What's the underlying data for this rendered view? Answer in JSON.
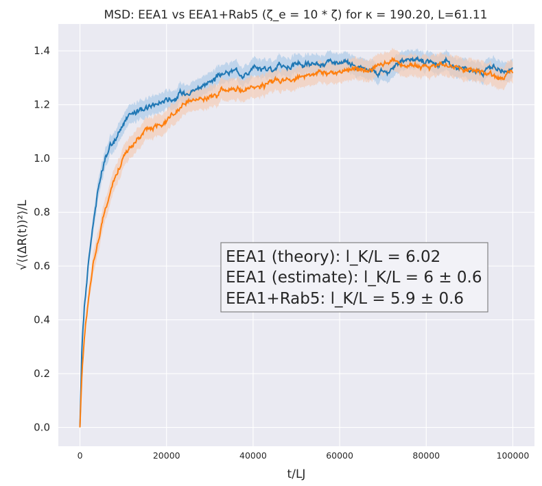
{
  "chart_data": {
    "type": "line",
    "title": "MSD: EEA1 vs EEA1+Rab5 (ζ_e = 10 * ζ) for κ = 190.20, L=61.11",
    "xlabel": "t/LJ",
    "ylabel": "√⟨(ΔR(t))²⟩/L",
    "xlim": [
      -5000,
      105000
    ],
    "ylim": [
      -0.07,
      1.5
    ],
    "grid": true,
    "x_ticks": [
      0,
      20000,
      40000,
      60000,
      80000,
      100000
    ],
    "x_tick_labels": [
      "0",
      "20000",
      "40000",
      "60000",
      "80000",
      "100000"
    ],
    "y_ticks": [
      0.0,
      0.2,
      0.4,
      0.6,
      0.8,
      1.0,
      1.2,
      1.4
    ],
    "y_tick_labels": [
      "0.0",
      "0.2",
      "0.4",
      "0.6",
      "0.8",
      "1.0",
      "1.2",
      "1.4"
    ],
    "x": [
      0,
      500,
      1000,
      2000,
      3000,
      4000,
      5000,
      6000,
      8000,
      10000,
      12000,
      15000,
      18000,
      20000,
      25000,
      30000,
      35000,
      40000,
      45000,
      50000,
      55000,
      60000,
      65000,
      70000,
      75000,
      80000,
      85000,
      90000,
      95000,
      100000
    ],
    "series": [
      {
        "color": "#1f77b4",
        "band_color": "#a8c8e6",
        "band_halfwidth": 0.035,
        "values": [
          0.0,
          0.32,
          0.45,
          0.62,
          0.76,
          0.87,
          0.94,
          1.0,
          1.07,
          1.13,
          1.16,
          1.19,
          1.2,
          1.22,
          1.25,
          1.29,
          1.32,
          1.33,
          1.34,
          1.35,
          1.35,
          1.34,
          1.34,
          1.33,
          1.36,
          1.37,
          1.35,
          1.34,
          1.33,
          1.335
        ]
      },
      {
        "color": "#ff7f0e",
        "band_color": "#f4c9b0",
        "band_halfwidth": 0.04,
        "values": [
          0.0,
          0.22,
          0.34,
          0.49,
          0.6,
          0.68,
          0.75,
          0.82,
          0.92,
          1.0,
          1.05,
          1.1,
          1.13,
          1.16,
          1.2,
          1.23,
          1.25,
          1.27,
          1.29,
          1.3,
          1.31,
          1.32,
          1.33,
          1.34,
          1.345,
          1.35,
          1.35,
          1.33,
          1.31,
          1.315
        ]
      }
    ],
    "annotation": {
      "lines": [
        "EEA1 (theory): l_K/L = 6.02",
        "EEA1 (estimate): l_K/L = 6 ± 0.6",
        "EEA1+Rab5: l_K/L = 5.9 ± 0.6"
      ]
    },
    "colors": {
      "plot_background": "#eaeaf2",
      "grid": "#ffffff",
      "annotation_border": "#808080",
      "annotation_fill": "#f2f2f7"
    }
  }
}
